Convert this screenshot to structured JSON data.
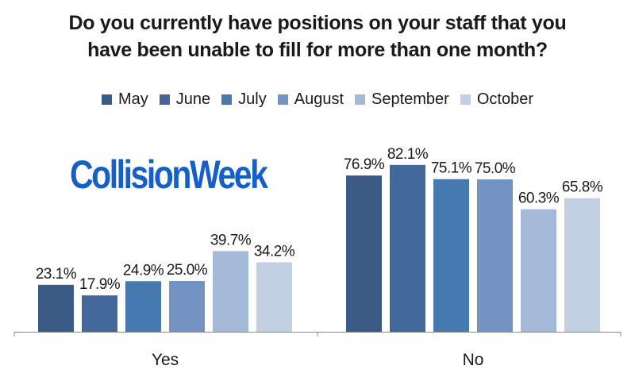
{
  "title_lines": [
    "Do you currently have positions on your staff that you",
    "have been unable to fill for more than one month?"
  ],
  "logo_text": "CollisionWeek",
  "colors": {
    "logo": "#1560c8",
    "axis": "#888888",
    "series": [
      "#3b5b87",
      "#44679b",
      "#4878b0",
      "#7393c3",
      "#a5b9d8",
      "#c3cfe3"
    ]
  },
  "chart_data": {
    "type": "bar",
    "categories": [
      "Yes",
      "No"
    ],
    "series": [
      {
        "name": "May",
        "values": [
          23.1,
          76.9
        ]
      },
      {
        "name": "June",
        "values": [
          17.9,
          82.1
        ]
      },
      {
        "name": "July",
        "values": [
          24.9,
          75.1
        ]
      },
      {
        "name": "August",
        "values": [
          25.0,
          75.0
        ]
      },
      {
        "name": "September",
        "values": [
          39.7,
          60.3
        ]
      },
      {
        "name": "October",
        "values": [
          34.2,
          65.8
        ]
      }
    ],
    "data_labels": [
      [
        "23.1%",
        "76.9%"
      ],
      [
        "17.9%",
        "82.1%"
      ],
      [
        "24.9%",
        "75.1%"
      ],
      [
        "25.0%",
        "75.0%"
      ],
      [
        "39.7%",
        "60.3%"
      ],
      [
        "34.2%",
        "65.8%"
      ]
    ],
    "title": "Do you currently have positions on your staff that you have been unable to fill for more than one month?",
    "ylim": [
      0,
      100
    ],
    "legend_position": "top",
    "grid": false
  }
}
